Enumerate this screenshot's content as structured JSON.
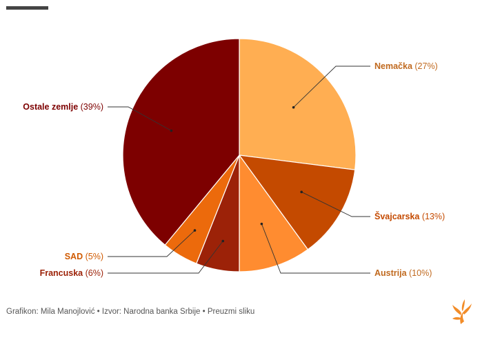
{
  "chart_data": {
    "type": "pie",
    "slices": [
      {
        "label": "Nemačka",
        "pct_label": "(27%)",
        "value": 27,
        "color": "#ffae52",
        "text_color": "#c0691e"
      },
      {
        "label": "Švajcarska",
        "pct_label": "(13%)",
        "value": 13,
        "color": "#c44a00",
        "text_color": "#c44a00"
      },
      {
        "label": "Austrija",
        "pct_label": "(10%)",
        "value": 10,
        "color": "#ff8c30",
        "text_color": "#c0691e"
      },
      {
        "label": "Francuska",
        "pct_label": "(6%)",
        "value": 6,
        "color": "#9c2208",
        "text_color": "#9c2208"
      },
      {
        "label": "SAD",
        "pct_label": "(5%)",
        "value": 5,
        "color": "#ec6a0c",
        "text_color": "#d05a00"
      },
      {
        "label": "Ostale zemlje",
        "pct_label": "(39%)",
        "value": 39,
        "color": "#7d0000",
        "text_color": "#7d0000"
      }
    ]
  },
  "footer": {
    "credit": "Grafikon: Mila Manojlović • Izvor: Narodna banka Srbije • Preuzmi sliku"
  },
  "logo": {
    "icon": "rfe-flame-logo-icon",
    "color": "#f28c28"
  }
}
